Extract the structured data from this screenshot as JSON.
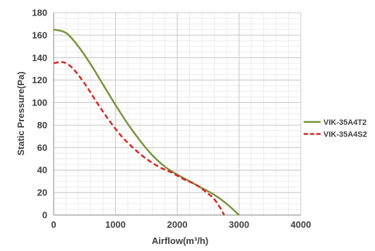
{
  "chart_data": {
    "type": "line",
    "title": "",
    "xlabel": "Airflow(m³/h)",
    "ylabel": "Static Pressure(Pa)",
    "xlim": [
      0,
      4000
    ],
    "ylim": [
      0,
      180
    ],
    "xticks": [
      0,
      1000,
      2000,
      3000,
      4000
    ],
    "yticks": [
      0,
      20,
      40,
      60,
      80,
      100,
      120,
      140,
      160,
      180
    ],
    "grid": true,
    "legend": "right",
    "series": [
      {
        "name": "VIK-35A4T2",
        "color": "#77933c",
        "style": "solid",
        "x": [
          0,
          200,
          400,
          600,
          800,
          1000,
          1200,
          1400,
          1600,
          1800,
          2000,
          2200,
          2400,
          2600,
          2800,
          3000
        ],
        "y": [
          165,
          162,
          150,
          134,
          116,
          98,
          81,
          66,
          53,
          43,
          36,
          30,
          24,
          18,
          10,
          0
        ]
      },
      {
        "name": "VIK-35A4S2",
        "color": "#e02020",
        "style": "dashed",
        "x": [
          0,
          150,
          300,
          500,
          700,
          900,
          1100,
          1300,
          1500,
          1700,
          1900,
          2100,
          2300,
          2500,
          2600,
          2700,
          2760
        ],
        "y": [
          135,
          136,
          131,
          117,
          100,
          84,
          70,
          59,
          50,
          43,
          38,
          32,
          27,
          19,
          14,
          6,
          0
        ]
      }
    ]
  }
}
